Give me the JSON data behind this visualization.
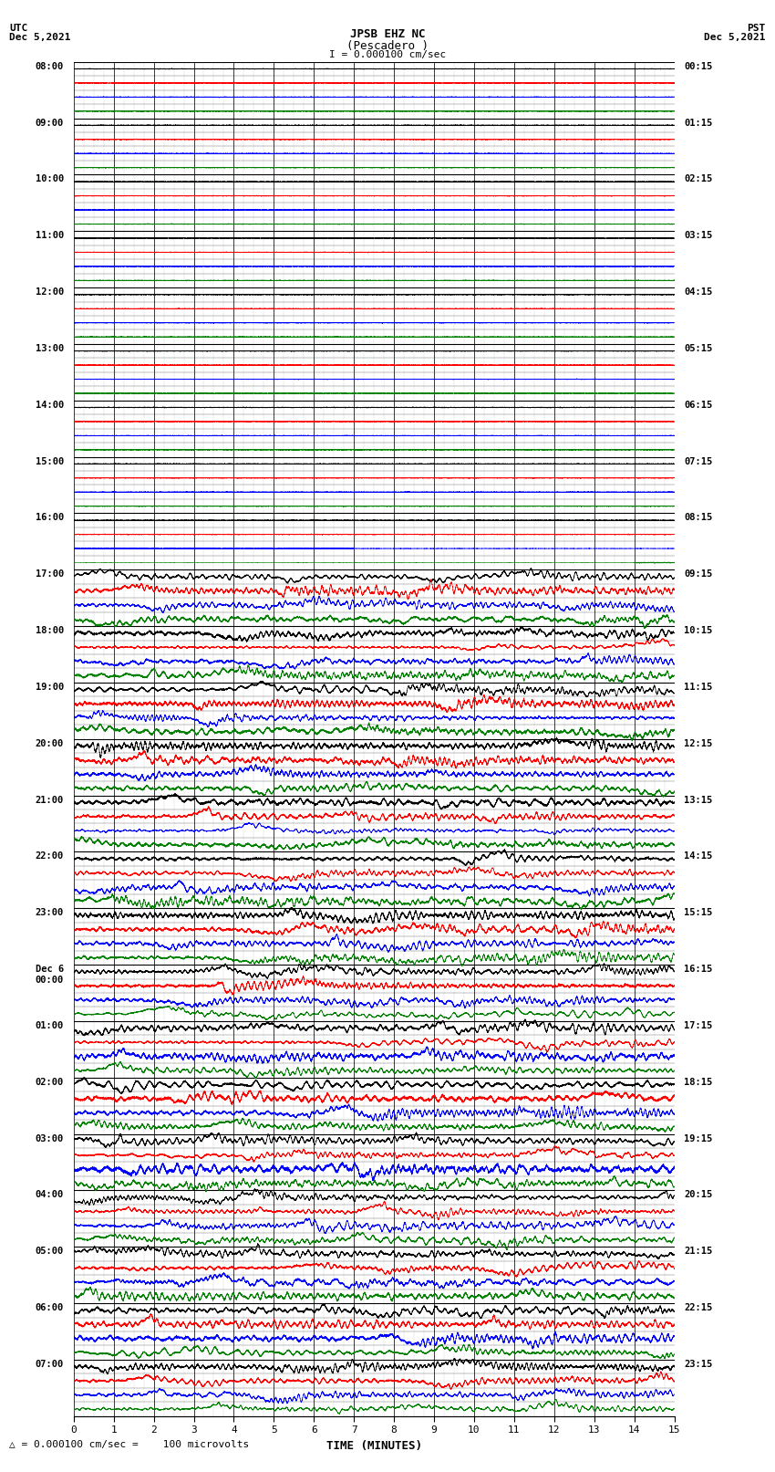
{
  "title_line1": "JPSB EHZ NC",
  "title_line2": "(Pescadero )",
  "scale_label": "I = 0.000100 cm/sec",
  "utc_label_line1": "UTC",
  "utc_label_line2": "Dec 5,2021",
  "pst_label_line1": "PST",
  "pst_label_line2": "Dec 5,2021",
  "xlabel": "TIME (MINUTES)",
  "bottom_note": "= 0.000100 cm/sec =    100 microvolts",
  "left_times_utc": [
    "08:00",
    "09:00",
    "10:00",
    "11:00",
    "12:00",
    "13:00",
    "14:00",
    "15:00",
    "16:00",
    "17:00",
    "18:00",
    "19:00",
    "20:00",
    "21:00",
    "22:00",
    "23:00",
    "Dec 6\n00:00",
    "01:00",
    "02:00",
    "03:00",
    "04:00",
    "05:00",
    "06:00",
    "07:00"
  ],
  "right_times_pst": [
    "00:15",
    "01:15",
    "02:15",
    "03:15",
    "04:15",
    "05:15",
    "06:15",
    "07:15",
    "08:15",
    "09:15",
    "10:15",
    "11:15",
    "12:15",
    "13:15",
    "14:15",
    "15:15",
    "16:15",
    "17:15",
    "18:15",
    "19:15",
    "20:15",
    "21:15",
    "22:15",
    "23:15"
  ],
  "n_hours": 24,
  "n_traces_per_hour": 4,
  "n_quiet_hours": 9,
  "colors_cycle": [
    "black",
    "red",
    "blue",
    "green"
  ],
  "bg_color": "white",
  "grid_color": "#000000",
  "minor_grid_color": "#555555",
  "xmin": 0,
  "xmax": 15,
  "xticks": [
    0,
    1,
    2,
    3,
    4,
    5,
    6,
    7,
    8,
    9,
    10,
    11,
    12,
    13,
    14,
    15
  ],
  "active_amp": 0.35,
  "quiet_amp": 0.02,
  "n_pts": 9000
}
